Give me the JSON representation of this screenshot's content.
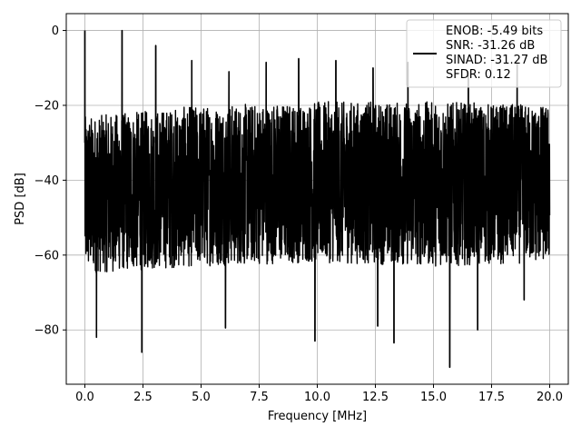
{
  "chart_data": {
    "type": "line",
    "title": "",
    "xlabel": "Frequency [MHz]",
    "ylabel": "PSD [dB]",
    "xlim": [
      -0.8,
      20.8
    ],
    "ylim": [
      -94.5,
      4.5
    ],
    "xticks": [
      0.0,
      2.5,
      5.0,
      7.5,
      10.0,
      12.5,
      15.0,
      17.5,
      20.0
    ],
    "xtick_labels": [
      "0.0",
      "2.5",
      "5.0",
      "7.5",
      "10.0",
      "12.5",
      "15.0",
      "17.5",
      "20.0"
    ],
    "yticks": [
      0,
      -20,
      -40,
      -60,
      -80
    ],
    "ytick_labels": [
      "0",
      "−20",
      "−40",
      "−60",
      "−80"
    ],
    "grid": true,
    "legend": {
      "placement": "top-right",
      "entries": [
        "ENOB: -5.49 bits",
        "SNR: -31.26 dB",
        "SINAD: -31.27 dB",
        "SFDR: 0.12"
      ]
    },
    "series": [
      {
        "color": "#000000",
        "x_range": [
          0.0,
          20.0
        ],
        "noise_band": {
          "upper_envelope": [
            [
              0.0,
              -23
            ],
            [
              5.0,
              -20
            ],
            [
              10.0,
              -19
            ],
            [
              15.0,
              -19
            ],
            [
              20.0,
              -20
            ]
          ],
          "lower_envelope": [
            [
              0.0,
              -65
            ],
            [
              5.0,
              -63
            ],
            [
              10.0,
              -62
            ],
            [
              15.0,
              -63
            ],
            [
              20.0,
              -62
            ]
          ]
        },
        "spikes": [
          {
            "x": 0.0,
            "y": 0.0
          },
          {
            "x": 1.6,
            "y": 0.0
          },
          {
            "x": 3.05,
            "y": -4.0
          },
          {
            "x": 4.6,
            "y": -8.0
          },
          {
            "x": 6.2,
            "y": -11.0
          },
          {
            "x": 7.8,
            "y": -8.5
          },
          {
            "x": 9.2,
            "y": -7.5
          },
          {
            "x": 10.8,
            "y": -8.0
          },
          {
            "x": 12.4,
            "y": -10.0
          },
          {
            "x": 13.9,
            "y": -8.5
          },
          {
            "x": 16.5,
            "y": -12.0
          },
          {
            "x": 18.6,
            "y": -9.0
          }
        ],
        "dips": [
          {
            "x": 0.5,
            "y": -82.0
          },
          {
            "x": 2.45,
            "y": -86.0
          },
          {
            "x": 6.05,
            "y": -79.5
          },
          {
            "x": 9.9,
            "y": -83.0
          },
          {
            "x": 12.6,
            "y": -79.0
          },
          {
            "x": 13.3,
            "y": -83.5
          },
          {
            "x": 15.7,
            "y": -90.0
          },
          {
            "x": 16.9,
            "y": -80.0
          },
          {
            "x": 18.9,
            "y": -72.0
          }
        ]
      }
    ]
  }
}
